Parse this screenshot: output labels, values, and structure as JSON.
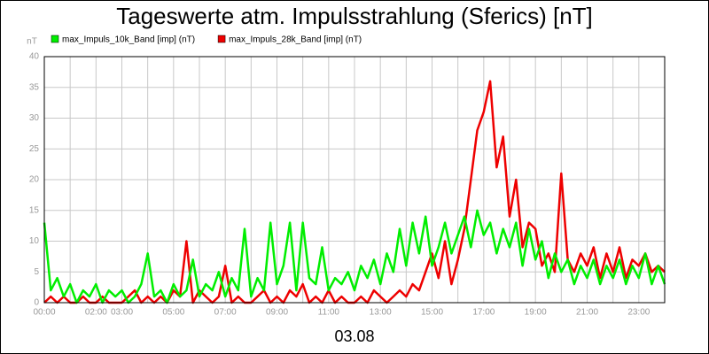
{
  "chart_data": {
    "type": "line",
    "title": "Tageswerte atm. Impulsstrahlung (Sferics) [nT]",
    "y_label": "nT",
    "x_label": "03.08",
    "x": [
      0,
      0.25,
      0.5,
      0.75,
      1,
      1.25,
      1.5,
      1.75,
      2,
      2.25,
      2.5,
      2.75,
      3,
      3.25,
      3.5,
      3.75,
      4,
      4.25,
      4.5,
      4.75,
      5,
      5.25,
      5.5,
      5.75,
      6,
      6.25,
      6.5,
      6.75,
      7,
      7.25,
      7.5,
      7.75,
      8,
      8.25,
      8.5,
      8.75,
      9,
      9.25,
      9.5,
      9.75,
      10,
      10.25,
      10.5,
      10.75,
      11,
      11.25,
      11.5,
      11.75,
      12,
      12.25,
      12.5,
      12.75,
      13,
      13.25,
      13.5,
      13.75,
      14,
      14.25,
      14.5,
      14.75,
      15,
      15.25,
      15.5,
      15.75,
      16,
      16.25,
      16.5,
      16.75,
      17,
      17.25,
      17.5,
      17.75,
      18,
      18.25,
      18.5,
      18.75,
      19,
      19.25,
      19.5,
      19.75,
      20,
      20.25,
      20.5,
      20.75,
      21,
      21.25,
      21.5,
      21.75,
      22,
      22.25,
      22.5,
      22.75,
      23,
      23.25,
      23.5,
      23.75,
      24
    ],
    "series": [
      {
        "name": "max_Impuls_10k_Band [imp] (nT)",
        "color": "#00ee00",
        "values": [
          13,
          2,
          4,
          1,
          3,
          0,
          2,
          1,
          3,
          0,
          2,
          1,
          2,
          0,
          1,
          3,
          8,
          1,
          2,
          0,
          3,
          1,
          2,
          7,
          1,
          3,
          2,
          5,
          1,
          4,
          2,
          12,
          1,
          4,
          2,
          13,
          3,
          6,
          13,
          2,
          13,
          4,
          3,
          9,
          2,
          4,
          3,
          5,
          2,
          6,
          4,
          7,
          3,
          8,
          5,
          12,
          6,
          13,
          8,
          14,
          6,
          9,
          13,
          8,
          11,
          14,
          9,
          15,
          11,
          13,
          8,
          12,
          9,
          13,
          6,
          12,
          7,
          10,
          4,
          8,
          5,
          7,
          3,
          6,
          4,
          7,
          3,
          6,
          4,
          7,
          3,
          6,
          4,
          8,
          3,
          6,
          3
        ]
      },
      {
        "name": "max_Impuls_28k_Band [imp] (nT)",
        "color": "#ee0000",
        "values": [
          0,
          1,
          0,
          1,
          0,
          0,
          1,
          0,
          0,
          1,
          0,
          0,
          0,
          1,
          2,
          0,
          1,
          0,
          1,
          0,
          2,
          1,
          10,
          0,
          2,
          1,
          0,
          1,
          6,
          0,
          1,
          0,
          0,
          1,
          2,
          0,
          1,
          0,
          2,
          1,
          3,
          0,
          1,
          0,
          2,
          0,
          1,
          0,
          0,
          1,
          0,
          2,
          1,
          0,
          1,
          2,
          1,
          3,
          2,
          5,
          8,
          4,
          10,
          3,
          7,
          12,
          20,
          28,
          31,
          36,
          22,
          27,
          14,
          20,
          9,
          13,
          12,
          6,
          8,
          5,
          21,
          7,
          5,
          8,
          6,
          9,
          4,
          8,
          5,
          9,
          4,
          7,
          6,
          8,
          5,
          6,
          5
        ]
      }
    ],
    "xlim": [
      0,
      24
    ],
    "xticks": [
      {
        "value": 0,
        "label": "00:00"
      },
      {
        "value": 2,
        "label": "02:00"
      },
      {
        "value": 3,
        "label": "03:00"
      },
      {
        "value": 5,
        "label": "05:00"
      },
      {
        "value": 7,
        "label": "07:00"
      },
      {
        "value": 9,
        "label": "09:00"
      },
      {
        "value": 11,
        "label": "11:00"
      },
      {
        "value": 13,
        "label": "13:00"
      },
      {
        "value": 15,
        "label": "15:00"
      },
      {
        "value": 17,
        "label": "17:00"
      },
      {
        "value": 19,
        "label": "19:00"
      },
      {
        "value": 21,
        "label": "21:00"
      },
      {
        "value": 23,
        "label": "23:00"
      }
    ],
    "xgrid_extra": [
      1,
      4,
      6,
      8,
      10,
      12,
      14,
      16,
      18,
      20,
      22,
      24
    ],
    "ylim": [
      0,
      40
    ],
    "yticks": [
      0,
      5,
      10,
      15,
      20,
      25,
      30,
      35,
      40
    ],
    "grid": true
  }
}
